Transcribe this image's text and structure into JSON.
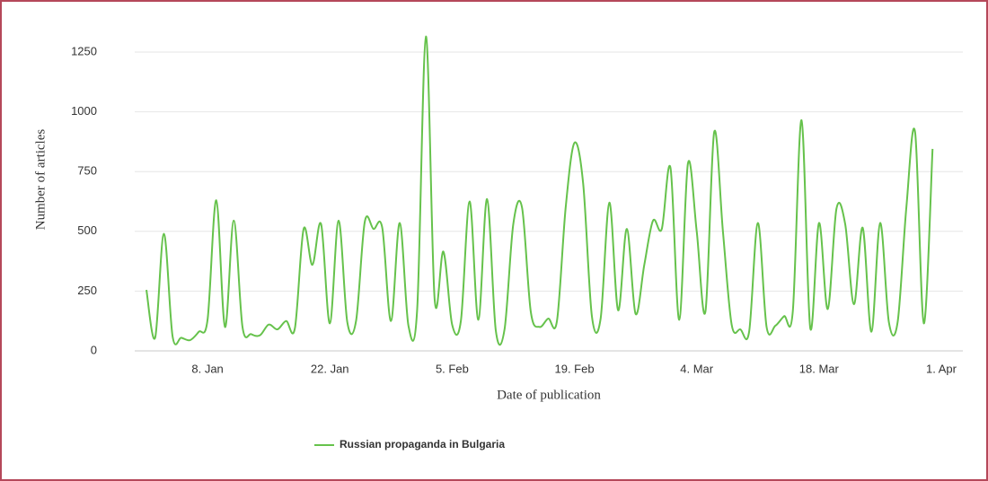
{
  "chart_data": {
    "type": "line",
    "x_label": "Date of publication",
    "y_label": "Number of  articles",
    "categories": [
      null,
      null,
      null,
      null,
      null,
      null,
      null,
      "8. Jan",
      null,
      null,
      null,
      null,
      null,
      null,
      null,
      null,
      null,
      null,
      null,
      null,
      null,
      "22. Jan",
      null,
      null,
      null,
      null,
      null,
      null,
      null,
      null,
      null,
      null,
      null,
      null,
      null,
      "5. Feb",
      null,
      null,
      null,
      null,
      null,
      null,
      null,
      null,
      null,
      null,
      null,
      null,
      null,
      "19. Feb",
      null,
      null,
      null,
      null,
      null,
      null,
      null,
      null,
      null,
      null,
      null,
      null,
      null,
      "4. Mar",
      null,
      null,
      null,
      null,
      null,
      null,
      null,
      null,
      null,
      null,
      null,
      null,
      null,
      "18. Mar",
      null,
      null,
      null,
      null,
      null,
      null,
      null,
      null,
      null,
      null,
      null,
      null,
      null,
      "1. Apr"
    ],
    "series": [
      {
        "name": "Russian propaganda in Bulgaria",
        "color": "#66c24c",
        "values": [
          255,
          55,
          490,
          60,
          55,
          45,
          80,
          130,
          630,
          100,
          545,
          100,
          70,
          65,
          110,
          90,
          125,
          95,
          510,
          360,
          530,
          115,
          545,
          120,
          125,
          540,
          510,
          515,
          125,
          535,
          105,
          175,
          1315,
          215,
          415,
          110,
          125,
          625,
          130,
          635,
          85,
          90,
          530,
          600,
          165,
          100,
          135,
          125,
          600,
          870,
          700,
          145,
          135,
          620,
          170,
          510,
          155,
          360,
          545,
          510,
          765,
          130,
          785,
          500,
          165,
          915,
          500,
          110,
          90,
          80,
          535,
          100,
          105,
          145,
          165,
          965,
          95,
          535,
          175,
          595,
          530,
          195,
          515,
          80,
          535,
          120,
          120,
          600,
          915,
          115,
          845,
          null
        ]
      }
    ],
    "ylim": [
      0,
      1250
    ],
    "yticks": [
      0,
      250,
      500,
      750,
      1000,
      1250
    ],
    "grid": true,
    "legend": "bottom"
  }
}
